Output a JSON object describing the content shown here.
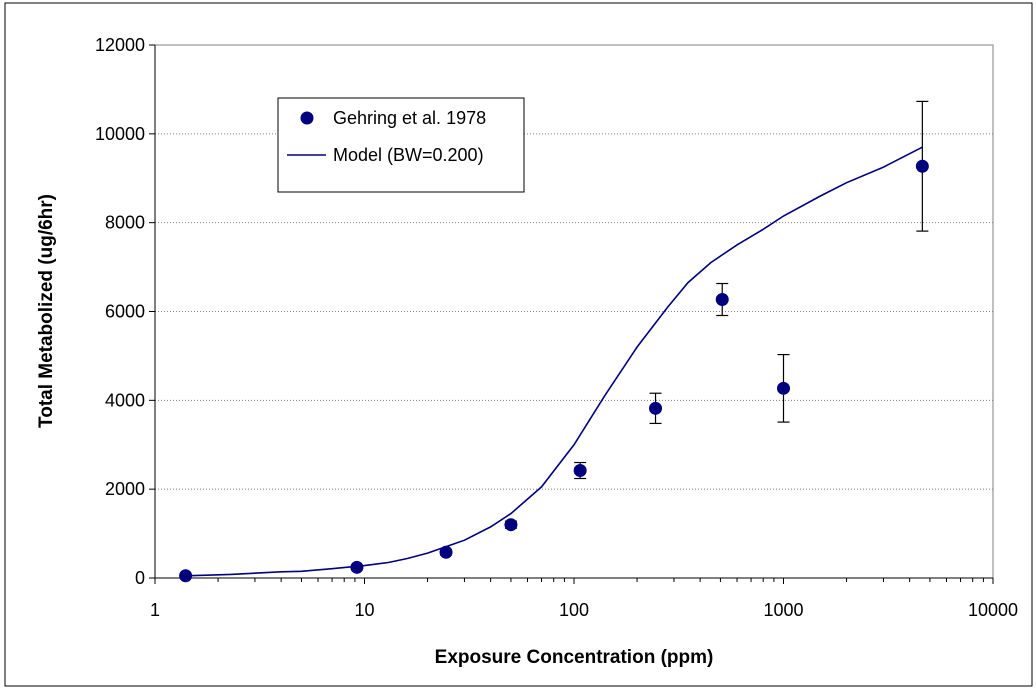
{
  "chart_data": {
    "type": "scatter",
    "xlabel": "Exposure Concentration (ppm)",
    "ylabel": "Total Metabolized (ug/6hr)",
    "xscale": "log",
    "xlim": [
      1,
      10000
    ],
    "ylim": [
      0,
      12000
    ],
    "xticks": [
      1,
      10,
      100,
      1000,
      10000
    ],
    "xtick_labels": [
      "1",
      "10",
      "100",
      "1000",
      "10000"
    ],
    "yticks": [
      0,
      2000,
      4000,
      6000,
      8000,
      10000,
      12000
    ],
    "ytick_labels": [
      "0",
      "2000",
      "4000",
      "6000",
      "8000",
      "10000",
      "12000"
    ],
    "grid": "horizontal dotted",
    "legend_position": "top-left",
    "series": [
      {
        "name": "Gehring et al. 1978",
        "kind": "points",
        "color": "#00007f",
        "x": [
          1.4,
          9.2,
          24.5,
          50,
          107,
          245,
          510,
          1000,
          4600
        ],
        "y": [
          50,
          240,
          580,
          1200,
          2420,
          3820,
          6270,
          4270,
          9270
        ],
        "yerr": [
          0,
          0,
          60,
          80,
          180,
          340,
          360,
          760,
          1460
        ]
      },
      {
        "name": "Model (BW=0.200)",
        "kind": "line",
        "color": "#00007f",
        "x": [
          1.4,
          2.3,
          4,
          5,
          7,
          10,
          13,
          16,
          20,
          25,
          30,
          40,
          50,
          70,
          100,
          140,
          200,
          280,
          350,
          450,
          600,
          800,
          1000,
          1500,
          2000,
          3000,
          4600
        ],
        "y": [
          50,
          80,
          140,
          150,
          210,
          280,
          350,
          440,
          560,
          720,
          850,
          1150,
          1450,
          2050,
          3000,
          4100,
          5200,
          6100,
          6650,
          7100,
          7500,
          7850,
          8150,
          8600,
          8900,
          9250,
          9700
        ]
      }
    ]
  }
}
